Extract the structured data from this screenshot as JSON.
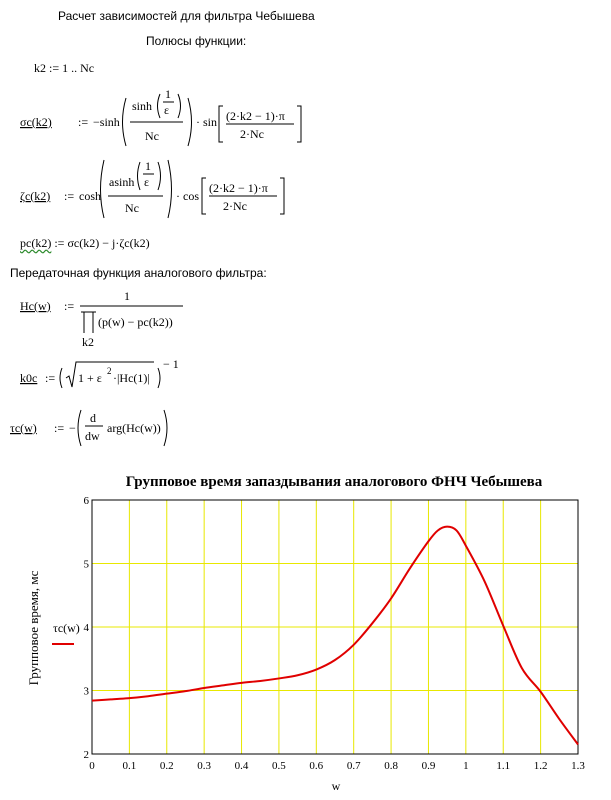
{
  "doc": {
    "title": "Расчет зависимостей для фильтра Чебышева",
    "poles_heading": "Полюсы функции:",
    "range_def": "k2 := 1 .. Nc",
    "transfer_heading": "Передаточная функция аналогового фильтра:"
  },
  "eq": {
    "sigma_lhs": "σc(k2)",
    "assign": ":=",
    "neg_sinh": "−sinh",
    "sinh": "sinh",
    "asinh": "asinh",
    "cosh": "cosh",
    "one": "1",
    "eps": "ε",
    "nc": "Nc",
    "sin": "sin",
    "cos": "cos",
    "arg_num": "(2·k2 − 1)·π",
    "arg_den": "2·Nc",
    "dot": "·",
    "zeta_lhs": "ζc(k2)",
    "pc_lhs": "pc(k2)",
    "pc_rhs": "σc(k2) − j·ζc(k2)",
    "hc_lhs": "Hc(w)",
    "hc_den": "(p(w) − pc(k2))",
    "hc_idx": "k2",
    "k0_lhs": "k0c",
    "k0_inner": "1 + ε",
    "k0_sq": "2",
    "k0_abs": "·|Hc(1)|",
    "k0_exp": "− 1",
    "tau_lhs": "τc(w)",
    "tau_minus": "−",
    "d": "d",
    "dw": "dw",
    "tau_arg": "arg(Hc(w))"
  },
  "chart_data": {
    "type": "line",
    "title": "Групповое время запаздывания аналогового ФНЧ Чебышева",
    "xlabel": "w",
    "ylabel": "Групповое время, мс",
    "xlim": [
      0,
      1.3
    ],
    "ylim": [
      2,
      6
    ],
    "xticks": [
      "0",
      "0.1",
      "0.2",
      "0.3",
      "0.4",
      "0.5",
      "0.6",
      "0.7",
      "0.8",
      "0.9",
      "1",
      "1.1",
      "1.2",
      "1.3"
    ],
    "yticks": [
      "2",
      "3",
      "4",
      "5",
      "6"
    ],
    "grid": true,
    "grid_color": "#e8e800",
    "series": [
      {
        "name": "τc(w)",
        "color": "#e00000",
        "x": [
          0,
          0.05,
          0.1,
          0.15,
          0.2,
          0.25,
          0.3,
          0.35,
          0.4,
          0.45,
          0.5,
          0.55,
          0.6,
          0.65,
          0.7,
          0.75,
          0.8,
          0.85,
          0.9,
          0.925,
          0.95,
          0.975,
          1.0,
          1.05,
          1.1,
          1.15,
          1.2,
          1.25,
          1.3
        ],
        "values": [
          2.84,
          2.86,
          2.88,
          2.91,
          2.95,
          2.99,
          3.04,
          3.08,
          3.12,
          3.15,
          3.19,
          3.24,
          3.33,
          3.48,
          3.72,
          4.06,
          4.45,
          4.92,
          5.35,
          5.52,
          5.58,
          5.52,
          5.28,
          4.72,
          4.02,
          3.35,
          2.98,
          2.55,
          2.15
        ]
      }
    ]
  }
}
